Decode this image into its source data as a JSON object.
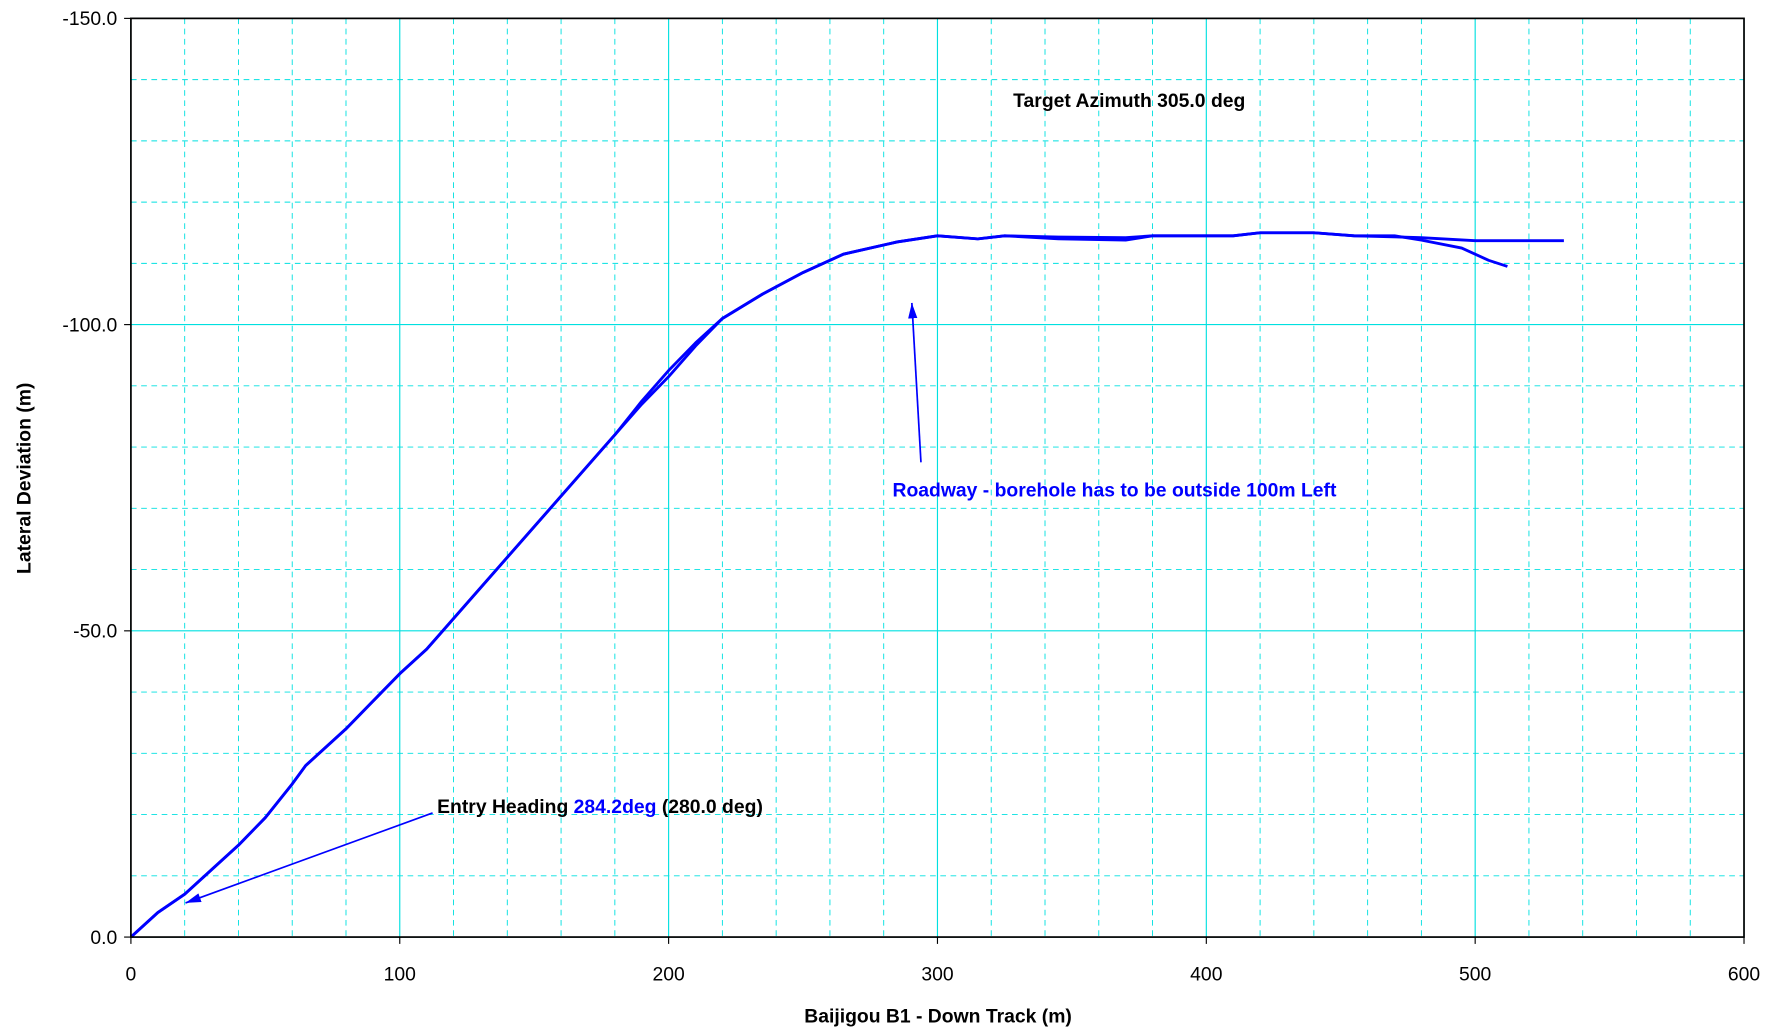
{
  "chart_data": {
    "type": "line",
    "xlabel": "Baijigou B1 - Down Track (m)",
    "ylabel": "Lateral Deviation (m)",
    "xlim": [
      0,
      600
    ],
    "ylim": [
      0,
      -150
    ],
    "xticks": [
      0,
      100,
      200,
      300,
      400,
      500,
      600
    ],
    "yticks": [
      {
        "value": 0,
        "label": "0.0"
      },
      {
        "value": -50,
        "label": "-50.0"
      },
      {
        "value": -100,
        "label": "-100.0"
      },
      {
        "value": -150,
        "label": "-150.0"
      }
    ],
    "x_minor_ticks": [
      20,
      40,
      60,
      80,
      120,
      140,
      160,
      180,
      220,
      240,
      260,
      280,
      320,
      340,
      360,
      380,
      420,
      440,
      460,
      480,
      520,
      540,
      560,
      580
    ],
    "y_minor_ticks": [
      -10,
      -20,
      -30,
      -40,
      -60,
      -70,
      -80,
      -90,
      -110,
      -120,
      -130,
      -140
    ],
    "grid": true,
    "series": [
      {
        "color": "#0000ff",
        "x": [
          0,
          10,
          20,
          30,
          40,
          50,
          60,
          65,
          80,
          90,
          100,
          110,
          120,
          130,
          140,
          150,
          160,
          170,
          180,
          190,
          200,
          210,
          220,
          235,
          250,
          265,
          285,
          300,
          315,
          325,
          345,
          370,
          380,
          410,
          420,
          440,
          455,
          480,
          500,
          533
        ],
        "values": [
          0,
          -4,
          -7,
          -11,
          -15,
          -19.5,
          -25,
          -28,
          -34,
          -38.5,
          -43,
          -47,
          -52,
          -57,
          -62,
          -67,
          -72,
          -77,
          -82,
          -87,
          -91.5,
          -96.5,
          -101,
          -105,
          -108.5,
          -111.5,
          -113.5,
          -114.5,
          -114,
          -114.5,
          -114.3,
          -114.2,
          -114.5,
          -114.5,
          -115,
          -115,
          -114.5,
          -114.2,
          -113.7,
          -113.7
        ]
      },
      {
        "color": "#0000ff",
        "x": [
          0,
          10,
          20,
          30,
          40,
          50,
          60,
          65,
          80,
          90,
          100,
          110,
          120,
          130,
          140,
          150,
          160,
          170,
          180,
          190,
          200,
          210,
          220,
          235,
          250,
          265,
          285,
          300,
          315,
          325,
          345,
          370,
          380,
          410,
          420,
          440,
          455,
          470,
          480,
          495,
          505,
          512
        ],
        "values": [
          0,
          -4,
          -7,
          -11,
          -15,
          -19.5,
          -25,
          -28,
          -34,
          -38.5,
          -43,
          -47,
          -52,
          -57,
          -62,
          -67,
          -72,
          -77,
          -82,
          -87.5,
          -92.5,
          -97,
          -101,
          -105,
          -108.5,
          -111.5,
          -113.5,
          -114.5,
          -114,
          -114.5,
          -114,
          -113.8,
          -114.5,
          -114.5,
          -115,
          -115,
          -114.5,
          -114.5,
          -113.8,
          -112.5,
          -110.5,
          -109.5
        ]
      }
    ],
    "annotations": [
      {
        "text": "Target Azimuth 305.0 deg"
      },
      {
        "text": "Roadway - borehole has to be outside 100m Left"
      },
      {
        "parts": [
          "Entry Heading ",
          "284.2deg",
          " (280.0 deg)"
        ]
      }
    ]
  }
}
